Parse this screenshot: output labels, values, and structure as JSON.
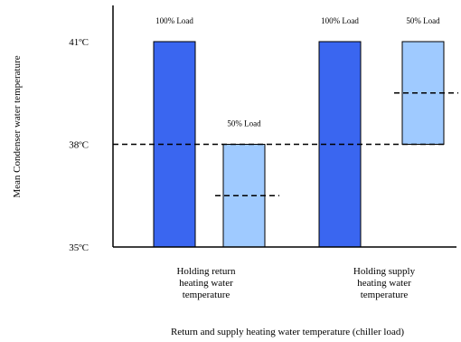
{
  "chart_data": {
    "type": "bar",
    "title": "",
    "ylabel": "Mean Condenser water temperature",
    "xlabel": "Return and supply heating water temperature (chiller load)",
    "ylim": [
      35,
      41
    ],
    "yticks": [
      "35ºC",
      "38ºC",
      "41ºC"
    ],
    "ytick_values": [
      35,
      38,
      41
    ],
    "groups": [
      {
        "label_lines": [
          "Holding return",
          "heating water",
          "temperature"
        ]
      },
      {
        "label_lines": [
          "Holding supply",
          "heating water",
          "temperature"
        ]
      }
    ],
    "bars": [
      {
        "group": 0,
        "label": "100% Load",
        "bottom": 35,
        "top": 41,
        "color": "#3a66f0",
        "mean": null
      },
      {
        "group": 0,
        "label": "50% Load",
        "bottom": 35,
        "top": 38,
        "color": "#9fcaff",
        "mean": 36.5
      },
      {
        "group": 1,
        "label": "100% Load",
        "bottom": 35,
        "top": 41,
        "color": "#3a66f0",
        "mean": null
      },
      {
        "group": 1,
        "label": "50% Load",
        "bottom": 38,
        "top": 41,
        "color": "#9fcaff",
        "mean": 39.5
      }
    ],
    "reference_line": 38,
    "grid": false,
    "legend": "none"
  }
}
